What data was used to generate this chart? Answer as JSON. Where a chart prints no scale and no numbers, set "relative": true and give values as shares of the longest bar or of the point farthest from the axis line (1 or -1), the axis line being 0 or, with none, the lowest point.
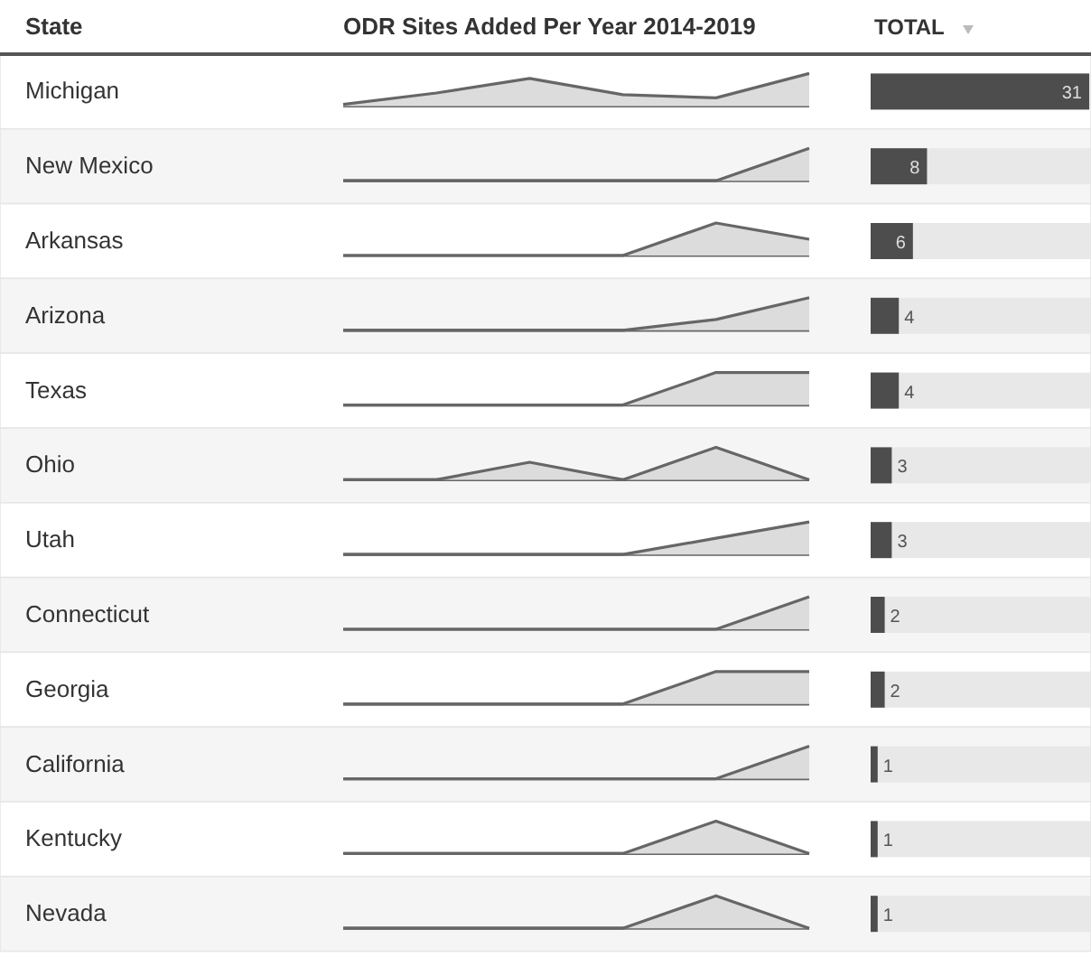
{
  "chart_data": [
    {
      "type": "bar",
      "orientation": "horizontal",
      "title": "TOTAL",
      "ylabel": "State",
      "categories": [
        "Michigan",
        "New Mexico",
        "Arkansas",
        "Arizona",
        "Texas",
        "Ohio",
        "Utah",
        "Connecticut",
        "Georgia",
        "California",
        "Kentucky",
        "Nevada"
      ],
      "values": [
        31,
        8,
        6,
        4,
        4,
        3,
        3,
        2,
        2,
        1,
        1,
        1
      ],
      "color": "#4d4d4d",
      "data_labels": true
    },
    {
      "type": "area",
      "relative": true,
      "title": "ODR Sites Added Per Year 2014-2019",
      "categories": [
        null,
        null,
        null,
        null,
        null,
        null
      ],
      "values": [
        0.05,
        0.4,
        0.85,
        0.35,
        0.25,
        1
      ],
      "color": "#dcdcdc"
    },
    {
      "type": "area",
      "relative": true,
      "categories": [
        null,
        null,
        null,
        null,
        null,
        null
      ],
      "values": [
        0,
        0,
        0,
        0,
        0,
        1
      ],
      "color": "#dcdcdc"
    },
    {
      "type": "area",
      "relative": true,
      "categories": [
        null,
        null,
        null,
        null,
        null,
        null
      ],
      "values": [
        0,
        0,
        0,
        0,
        1,
        0.5
      ],
      "color": "#dcdcdc"
    },
    {
      "type": "area",
      "relative": true,
      "categories": [
        null,
        null,
        null,
        null,
        null,
        null
      ],
      "values": [
        0,
        0,
        0,
        0,
        0.33,
        1
      ],
      "color": "#dcdcdc"
    },
    {
      "type": "area",
      "relative": true,
      "categories": [
        null,
        null,
        null,
        null,
        null,
        null
      ],
      "values": [
        0,
        0,
        0,
        0,
        1,
        1
      ],
      "color": "#dcdcdc"
    },
    {
      "type": "area",
      "relative": true,
      "categories": [
        null,
        null,
        null,
        null,
        null,
        null
      ],
      "values": [
        0,
        0,
        0.54,
        0,
        1,
        0
      ],
      "color": "#dcdcdc"
    },
    {
      "type": "area",
      "relative": true,
      "categories": [
        null,
        null,
        null,
        null,
        null,
        null
      ],
      "values": [
        0,
        0,
        0,
        0,
        0.5,
        1
      ],
      "color": "#dcdcdc"
    },
    {
      "type": "area",
      "relative": true,
      "categories": [
        null,
        null,
        null,
        null,
        null,
        null
      ],
      "values": [
        0,
        0,
        0,
        0,
        0,
        1
      ],
      "color": "#dcdcdc"
    },
    {
      "type": "area",
      "relative": true,
      "categories": [
        null,
        null,
        null,
        null,
        null,
        null
      ],
      "values": [
        0,
        0,
        0,
        0,
        1,
        1
      ],
      "color": "#dcdcdc"
    },
    {
      "type": "area",
      "relative": true,
      "categories": [
        null,
        null,
        null,
        null,
        null,
        null
      ],
      "values": [
        0,
        0,
        0,
        0,
        0,
        1
      ],
      "color": "#dcdcdc"
    },
    {
      "type": "area",
      "relative": true,
      "categories": [
        null,
        null,
        null,
        null,
        null,
        null
      ],
      "values": [
        0,
        0,
        0,
        0,
        1,
        0
      ],
      "color": "#dcdcdc"
    },
    {
      "type": "area",
      "relative": true,
      "categories": [
        null,
        null,
        null,
        null,
        null,
        null
      ],
      "values": [
        0,
        0,
        0,
        0,
        1,
        0
      ],
      "color": "#dcdcdc"
    }
  ]
}
